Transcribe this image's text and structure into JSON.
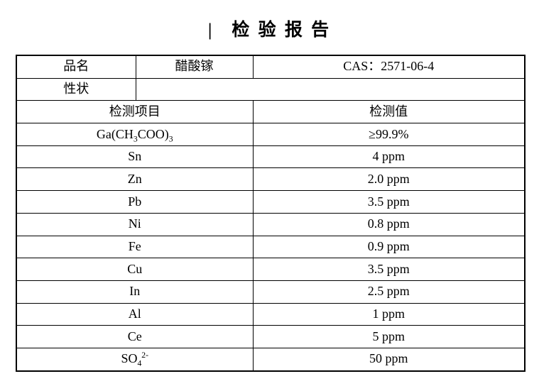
{
  "title": {
    "mark": "|",
    "text": "检 验 报 告"
  },
  "report": {
    "product": {
      "label": "品名",
      "name": "醋酸镓",
      "cas": "CAS：2571-06-4"
    },
    "properties": {
      "label": "性状",
      "value": ""
    },
    "header": {
      "item": "检测项目",
      "value": "检测值"
    },
    "rows": [
      {
        "item": "Ga(CH~3~COO)~3~",
        "value": "≥99.9%"
      },
      {
        "item": "Sn",
        "value": "4 ppm"
      },
      {
        "item": "Zn",
        "value": "2.0 ppm"
      },
      {
        "item": "Pb",
        "value": "3.5 ppm"
      },
      {
        "item": "Ni",
        "value": "0.8 ppm"
      },
      {
        "item": "Fe",
        "value": "0.9 ppm"
      },
      {
        "item": "Cu",
        "value": "3.5 ppm"
      },
      {
        "item": "In",
        "value": "2.5 ppm"
      },
      {
        "item": "Al",
        "value": "1 ppm"
      },
      {
        "item": "Ce",
        "value": "5 ppm"
      },
      {
        "item": "SO~4~^2-^",
        "value": "50 ppm"
      }
    ]
  },
  "colors": {
    "text": "#000000",
    "border": "#000000",
    "background": "#ffffff"
  }
}
